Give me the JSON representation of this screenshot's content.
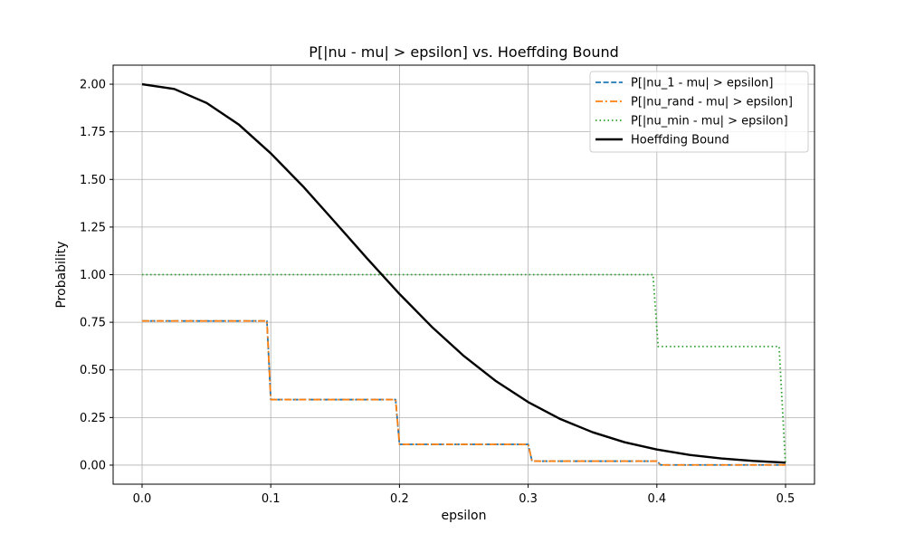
{
  "chart_data": {
    "type": "line",
    "title": "P[|nu - mu| > epsilon] vs. Hoeffding Bound",
    "xlabel": "epsilon",
    "ylabel": "Probability",
    "xlim": [
      -0.0225,
      0.5225
    ],
    "ylim": [
      -0.1,
      2.1
    ],
    "xticks": [
      0.0,
      0.1,
      0.2,
      0.3,
      0.4,
      0.5
    ],
    "xtick_labels": [
      "0.0",
      "0.1",
      "0.2",
      "0.3",
      "0.4",
      "0.5"
    ],
    "yticks": [
      0.0,
      0.25,
      0.5,
      0.75,
      1.0,
      1.25,
      1.5,
      1.75,
      2.0
    ],
    "ytick_labels": [
      "0.00",
      "0.25",
      "0.50",
      "0.75",
      "1.00",
      "1.25",
      "1.50",
      "1.75",
      "2.00"
    ],
    "grid": true,
    "legend_position": "top-right",
    "series": [
      {
        "name": "P[|nu_1 - mu| > epsilon]",
        "color": "#1f77b4",
        "style": "dashed",
        "x": [
          0.0,
          0.097,
          0.1,
          0.197,
          0.2,
          0.3,
          0.303,
          0.4,
          0.403,
          0.5
        ],
        "y": [
          0.757,
          0.757,
          0.344,
          0.344,
          0.109,
          0.109,
          0.021,
          0.021,
          0.001,
          0.001
        ]
      },
      {
        "name": "P[|nu_rand - mu| > epsilon]",
        "color": "#ff7f0e",
        "style": "dashdot",
        "x": [
          0.0,
          0.097,
          0.1,
          0.197,
          0.2,
          0.3,
          0.303,
          0.4,
          0.403,
          0.5
        ],
        "y": [
          0.757,
          0.757,
          0.344,
          0.344,
          0.109,
          0.109,
          0.021,
          0.021,
          0.001,
          0.001
        ]
      },
      {
        "name": "P[|nu_min - mu| > epsilon]",
        "color": "#2ca02c",
        "style": "dotted",
        "x": [
          0.0,
          0.397,
          0.401,
          0.495,
          0.5
        ],
        "y": [
          1.0,
          1.0,
          0.623,
          0.623,
          0.0
        ]
      },
      {
        "name": "Hoeffding Bound",
        "color": "#000000",
        "style": "solid",
        "x": [
          0.0,
          0.025,
          0.05,
          0.075,
          0.1,
          0.125,
          0.15,
          0.175,
          0.2,
          0.225,
          0.25,
          0.275,
          0.3,
          0.325,
          0.35,
          0.375,
          0.4,
          0.425,
          0.45,
          0.475,
          0.5
        ],
        "y": [
          2.0,
          1.975,
          1.902,
          1.789,
          1.637,
          1.464,
          1.275,
          1.084,
          0.899,
          0.727,
          0.573,
          0.441,
          0.331,
          0.242,
          0.173,
          0.12,
          0.082,
          0.054,
          0.035,
          0.022,
          0.013
        ]
      }
    ]
  }
}
